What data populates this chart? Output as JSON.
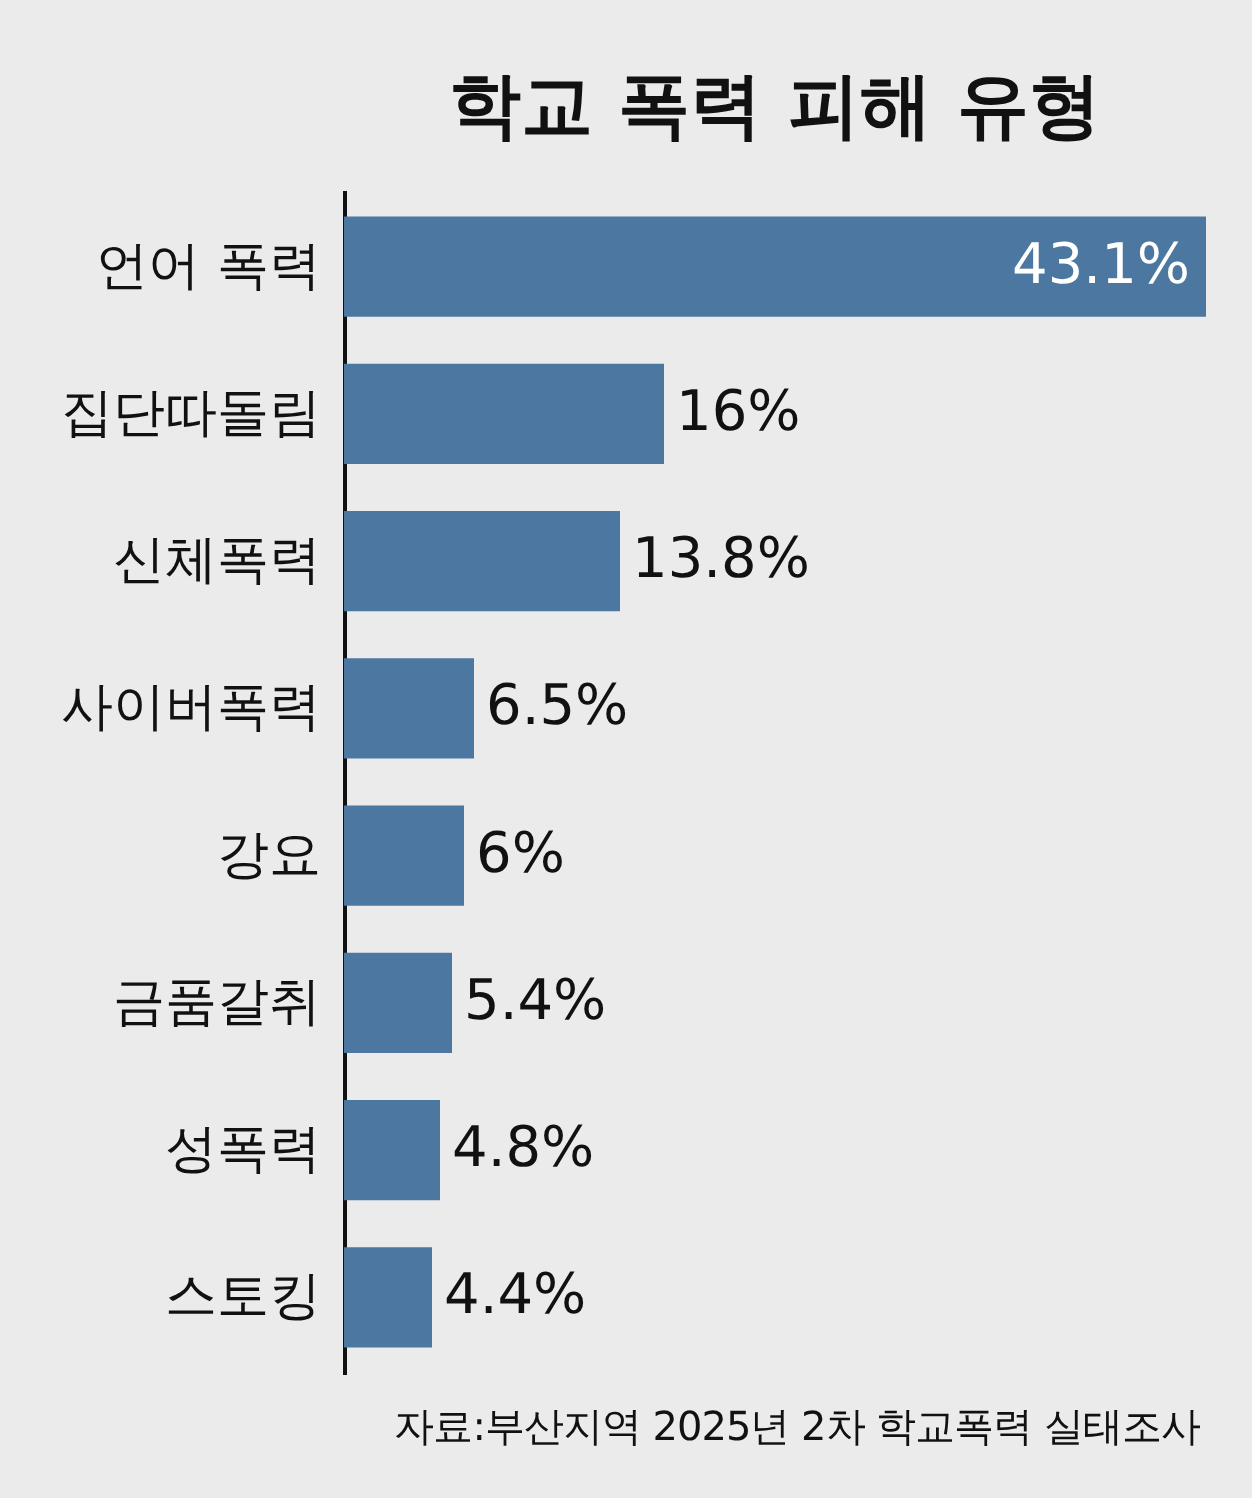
{
  "chart_data": {
    "type": "bar",
    "orientation": "horizontal",
    "title": "학교 폭력 피해 유형",
    "categories": [
      "언어 폭력",
      "집단따돌림",
      "신체폭력",
      "사이버폭력",
      "강요",
      "금품갈취",
      "성폭력",
      "스토킹"
    ],
    "values": [
      43.1,
      16,
      13.8,
      6.5,
      6,
      5.4,
      4.8,
      4.4
    ],
    "value_labels": [
      "43.1%",
      "16%",
      "13.8%",
      "6.5%",
      "6%",
      "5.4%",
      "4.8%",
      "4.4%"
    ],
    "color": "#4b77a1",
    "annotations": [
      "자료:부산지역 2025년 2차 학교폭력 실태조사"
    ]
  }
}
